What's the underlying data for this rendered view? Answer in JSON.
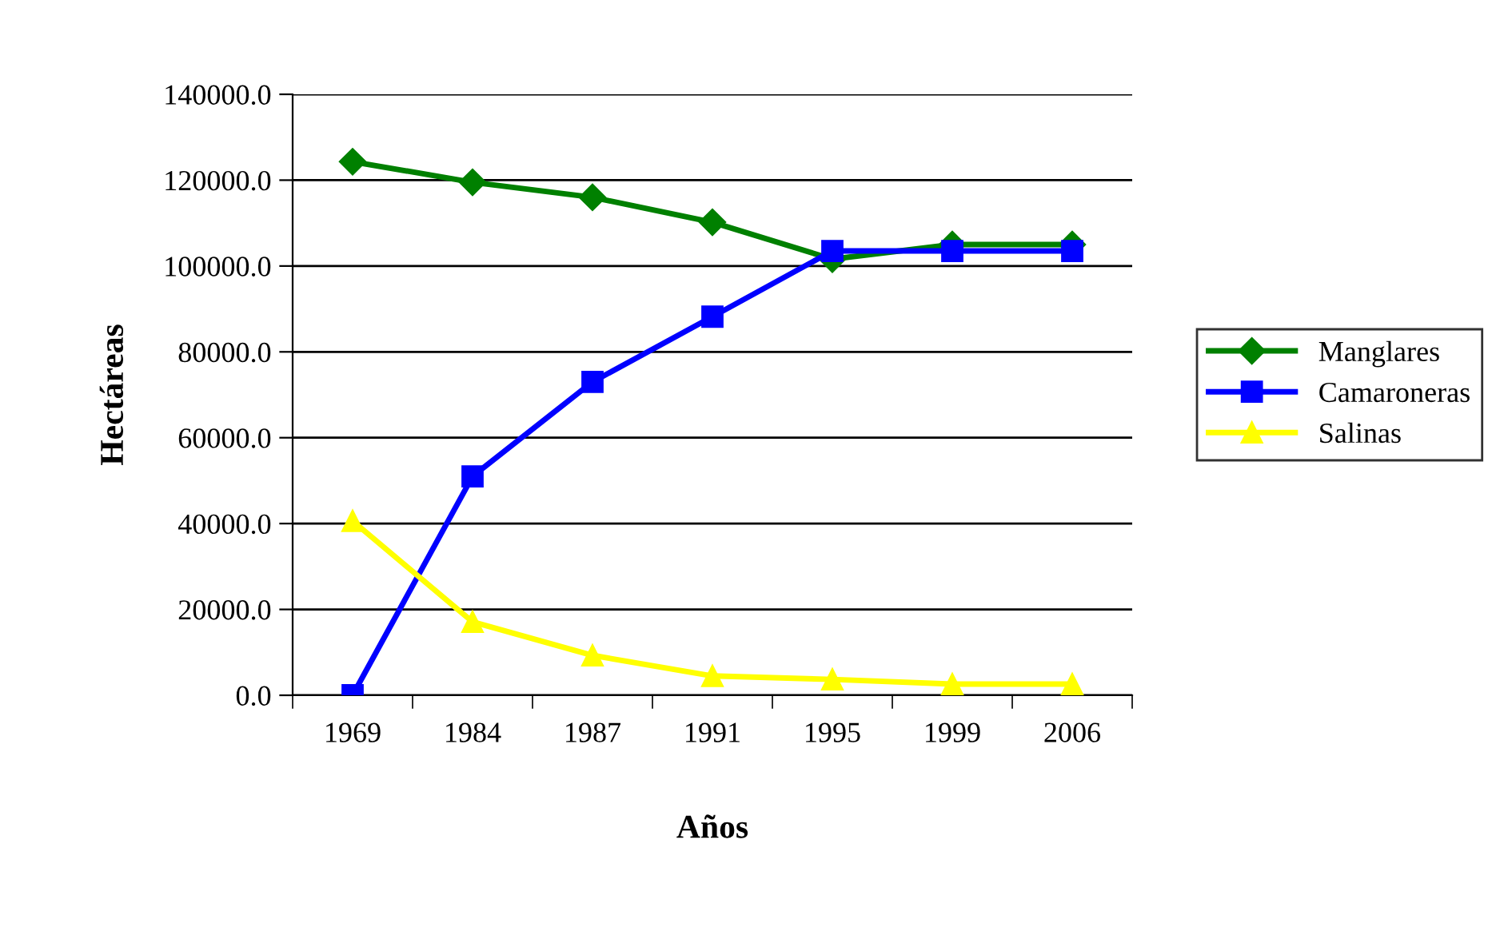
{
  "chart_data": {
    "type": "line",
    "xlabel": "Años",
    "ylabel": "Hectáreas",
    "categories": [
      "1969",
      "1984",
      "1987",
      "1991",
      "1995",
      "1999",
      "2006"
    ],
    "series": [
      {
        "name": "Manglares",
        "color": "#008000",
        "marker": "diamond",
        "values": [
          124300,
          119500,
          116000,
          110200,
          101600,
          105000,
          105000
        ]
      },
      {
        "name": "Camaroneras",
        "color": "#0000ff",
        "marker": "square",
        "values": [
          0,
          51000,
          73000,
          88200,
          103500,
          103500,
          103500
        ]
      },
      {
        "name": "Salinas",
        "color": "#ffff00",
        "marker": "triangle",
        "values": [
          40600,
          17100,
          9300,
          4500,
          3700,
          2600,
          2600
        ]
      }
    ],
    "ylim": [
      0,
      140000
    ],
    "yticks": [
      {
        "value": 0,
        "label": "0.0"
      },
      {
        "value": 20000,
        "label": "20000.0"
      },
      {
        "value": 40000,
        "label": "40000.0"
      },
      {
        "value": 60000,
        "label": "60000.0"
      },
      {
        "value": 80000,
        "label": "80000.0"
      },
      {
        "value": 100000,
        "label": "100000.0"
      },
      {
        "value": 120000,
        "label": "120000.0"
      },
      {
        "value": 140000,
        "label": "140000.0"
      }
    ],
    "grid": "y",
    "legend": "right"
  }
}
